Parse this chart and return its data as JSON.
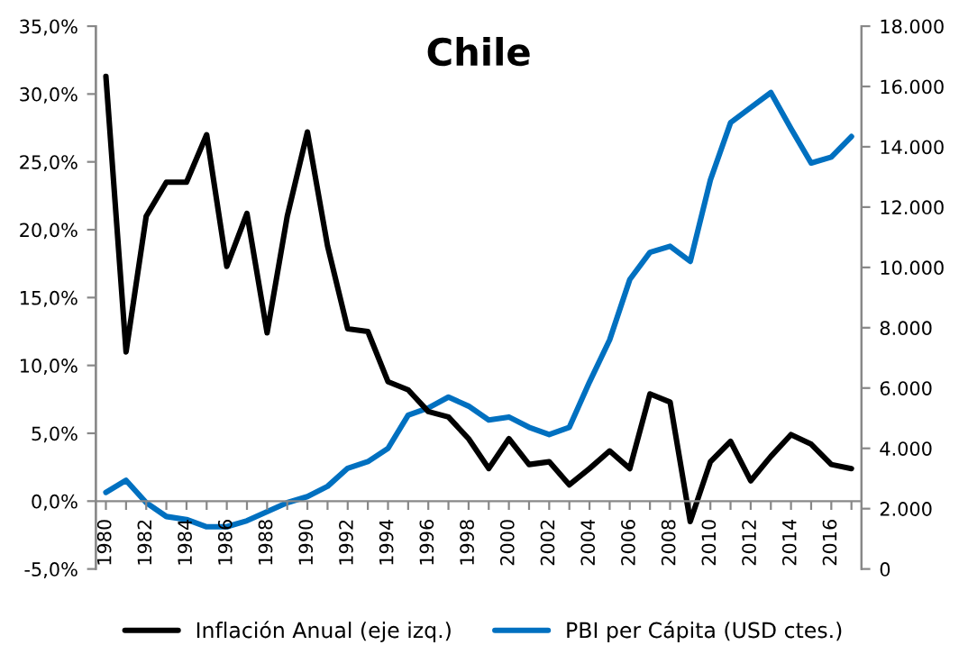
{
  "chart_data": {
    "type": "line",
    "title": "Chile",
    "categories": [
      "1980",
      null,
      "1982",
      null,
      "1984",
      null,
      "1986",
      null,
      "1988",
      null,
      "1990",
      null,
      "1992",
      null,
      "1994",
      null,
      "1996",
      null,
      "1998",
      null,
      "2000",
      null,
      "2002",
      null,
      "2004",
      null,
      "2006",
      null,
      "2008",
      null,
      "2010",
      null,
      "2012",
      null,
      "2014",
      null,
      "2016",
      null
    ],
    "series": [
      {
        "name": "Inflación Anual (eje izq.)",
        "color": "#000000",
        "values": [
          31.3,
          11.0,
          21.0,
          23.5,
          23.5,
          27.0,
          17.3,
          21.2,
          12.4,
          21.0,
          27.2,
          18.8,
          12.7,
          12.5,
          8.8,
          8.2,
          6.6,
          6.2,
          4.6,
          2.4,
          4.6,
          2.7,
          2.9,
          1.2,
          2.4,
          3.7,
          2.4,
          7.9,
          7.3,
          -1.5,
          2.9,
          4.4,
          1.5,
          3.3,
          4.9,
          4.2,
          2.7,
          2.4
        ]
      },
      {
        "name": "PBI per Cápita (USD ctes.)",
        "color": "#0070c0",
        "axis": "y2",
        "values": [
          2540,
          2940,
          2200,
          1740,
          1640,
          1400,
          1400,
          1600,
          1900,
          2200,
          2400,
          2740,
          3340,
          3560,
          4000,
          5100,
          5340,
          5700,
          5400,
          4940,
          5040,
          4700,
          4460,
          4700,
          6200,
          7600,
          9600,
          10500,
          10700,
          10200,
          12900,
          14800,
          15300,
          15800,
          14600,
          13460,
          13660,
          14340
        ]
      }
    ],
    "ylim": [
      -5,
      35
    ],
    "yticks": [
      {
        "value": -5,
        "label": "-5,0%"
      },
      {
        "value": 0,
        "label": "0,0%"
      },
      {
        "value": 5,
        "label": "5,0%"
      },
      {
        "value": 10,
        "label": "10,0%"
      },
      {
        "value": 15,
        "label": "15,0%"
      },
      {
        "value": 20,
        "label": "20,0%"
      },
      {
        "value": 25,
        "label": "25,0%"
      },
      {
        "value": 30,
        "label": "30,0%"
      },
      {
        "value": 35,
        "label": "35,0%"
      }
    ],
    "y2lim": [
      0,
      18000
    ],
    "y2ticks": [
      0,
      {
        "value": 2000,
        "label": "2.000"
      },
      {
        "value": 4000,
        "label": "4.000"
      },
      {
        "value": 6000,
        "label": "6.000"
      },
      {
        "value": 8000,
        "label": "8.000"
      },
      {
        "value": 10000,
        "label": "10.000"
      },
      {
        "value": 12000,
        "label": "12.000"
      },
      {
        "value": 14000,
        "label": "14.000"
      },
      {
        "value": 16000,
        "label": "16.000"
      },
      {
        "value": 18000,
        "label": "18.000"
      }
    ],
    "grid": false,
    "legend": "bottom",
    "marker": "none",
    "line_style": "solid"
  }
}
